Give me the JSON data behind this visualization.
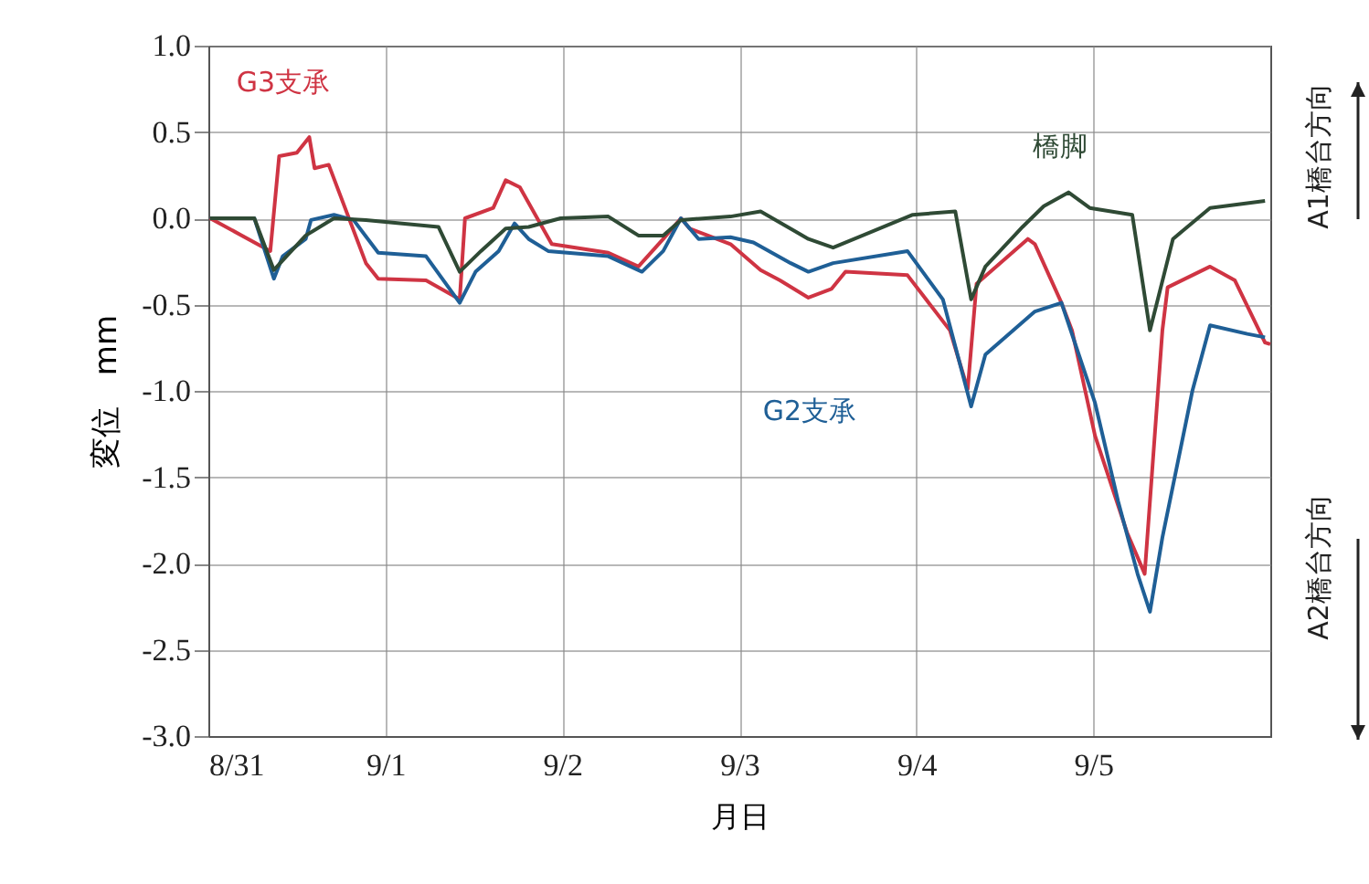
{
  "chart_data": {
    "type": "line",
    "xlabel": "月日",
    "ylabel": "変位　mm",
    "xlim": [
      "--08-31",
      "--09-06"
    ],
    "xticks": [
      {
        "value": "--08-31",
        "label": "8/31"
      },
      {
        "value": "--09-01",
        "label": "9/1"
      },
      {
        "value": "--09-02",
        "label": "9/2"
      },
      {
        "value": "--09-03",
        "label": "9/3"
      },
      {
        "value": "--09-04",
        "label": "9/4"
      },
      {
        "value": "--09-05",
        "label": "9/5"
      }
    ],
    "ylim": [
      -3,
      1
    ],
    "yticks": [
      {
        "value": 1,
        "label": "1.0"
      },
      {
        "value": 0.5,
        "label": "0.5"
      },
      {
        "value": 0,
        "label": "0.0"
      },
      {
        "value": -0.5,
        "label": "-0.5"
      },
      {
        "value": -1,
        "label": "-1.0"
      },
      {
        "value": -1.5,
        "label": "-1.5"
      },
      {
        "value": -2,
        "label": "-2.0"
      },
      {
        "value": -2.5,
        "label": "-2.5"
      },
      {
        "value": -3,
        "label": "-3.0"
      }
    ],
    "grid": true,
    "line_style": "solid",
    "series": [
      {
        "name": "G3支承",
        "color": "#cf3443",
        "x": [
          "--08-31T00:14",
          "--08-31T08:24",
          "--08-31T09:36",
          "--08-31T12:00",
          "--08-31T13:41",
          "--08-31T14:24",
          "--08-31T16:19",
          "--08-31T21:22",
          "--08-31T23:02",
          "--09-01T05:31",
          "--09-01T10:05",
          "--09-01T10:48",
          "--09-01T14:38",
          "--09-01T16:19",
          "--09-01T18:14",
          "--09-01T22:34",
          "--09-02T06:14",
          "--09-02T10:19",
          "--09-02T13:41",
          "--09-02T16:05",
          "--09-02T17:17",
          "--09-02T22:48",
          "--09-03T02:53",
          "--09-03T05:31",
          "--09-03T09:22",
          "--09-03T12:29",
          "--09-03T14:24",
          "--09-03T22:48",
          "--09-04T04:34",
          "--09-04T06:58",
          "--09-04T08:10",
          "--09-04T15:07",
          "--09-04T16:05",
          "--09-04T19:41",
          "--09-04T21:07",
          "--09-05T00:14",
          "--09-05T04:34",
          "--09-05T06:58",
          "--09-05T09:22",
          "--09-05T10:05",
          "--09-05T15:50",
          "--09-05T19:12",
          "--09-05T23:17",
          "--09-06T00:00"
        ],
        "values": [
          0,
          -0.19,
          0.36,
          0.38,
          0.47,
          0.29,
          0.31,
          -0.26,
          -0.35,
          -0.36,
          -0.47,
          0,
          0.06,
          0.22,
          0.18,
          -0.15,
          -0.2,
          -0.28,
          -0.12,
          0,
          -0.06,
          -0.15,
          -0.3,
          -0.36,
          -0.46,
          -0.41,
          -0.31,
          -0.33,
          -0.65,
          -0.99,
          -0.38,
          -0.12,
          -0.15,
          -0.49,
          -0.65,
          -1.26,
          -1.82,
          -2.06,
          -0.65,
          -0.4,
          -0.28,
          -0.36,
          -0.72,
          -0.73
        ]
      },
      {
        "name": "G2支承",
        "color": "#1f5f96",
        "x": [
          "--08-31T00:14",
          "--08-31T06:14",
          "--08-31T08:53",
          "--08-31T10:05",
          "--08-31T13:12",
          "--08-31T13:55",
          "--08-31T17:02",
          "--08-31T19:41",
          "--08-31T23:02",
          "--09-01T05:31",
          "--09-01T10:05",
          "--09-01T12:14",
          "--09-01T15:22",
          "--09-01T17:31",
          "--09-01T19:26",
          "--09-01T22:05",
          "--09-02T06:14",
          "--09-02T10:48",
          "--09-02T13:41",
          "--09-02T16:05",
          "--09-02T18:29",
          "--09-02T22:48",
          "--09-03T01:55",
          "--09-03T06:58",
          "--09-03T09:22",
          "--09-03T12:43",
          "--09-03T22:48",
          "--09-04T03:36",
          "--09-04T07:26",
          "--09-04T09:22",
          "--09-04T16:05",
          "--09-04T19:41",
          "--09-05T00:14",
          "--09-05T03:22",
          "--09-05T06:00",
          "--09-05T07:41",
          "--09-05T09:22",
          "--09-05T13:26",
          "--09-05T15:50",
          "--09-05T20:53",
          "--09-05T23:17"
        ],
        "values": [
          0,
          0,
          -0.35,
          -0.22,
          -0.12,
          -0.01,
          0.02,
          -0.01,
          -0.2,
          -0.22,
          -0.49,
          -0.31,
          -0.19,
          -0.03,
          -0.12,
          -0.19,
          -0.22,
          -0.31,
          -0.19,
          0,
          -0.12,
          -0.11,
          -0.14,
          -0.26,
          -0.31,
          -0.26,
          -0.19,
          -0.47,
          -1.09,
          -0.79,
          -0.54,
          -0.49,
          -1.07,
          -1.64,
          -2.06,
          -2.28,
          -1.85,
          -1,
          -0.62,
          -0.67,
          -0.69
        ]
      },
      {
        "name": "橋脚",
        "color": "#2f4a35",
        "x": [
          "--08-31T00:14",
          "--08-31T06:14",
          "--08-31T08:53",
          "--08-31T13:12",
          "--08-31T17:02",
          "--08-31T21:22",
          "--09-01T07:12",
          "--09-01T10:05",
          "--09-01T12:58",
          "--09-01T16:19",
          "--09-01T19:26",
          "--09-01T23:46",
          "--09-02T06:14",
          "--09-02T10:19",
          "--09-02T13:41",
          "--09-02T16:05",
          "--09-02T22:48",
          "--09-03T02:53",
          "--09-03T09:22",
          "--09-03T12:43",
          "--09-03T23:31",
          "--09-04T05:17",
          "--09-04T07:26",
          "--09-04T09:22",
          "--09-04T14:24",
          "--09-04T17:17",
          "--09-04T20:38",
          "--09-04T23:31",
          "--09-05T05:17",
          "--09-05T07:41",
          "--09-05T10:48",
          "--09-05T15:50",
          "--09-05T23:17"
        ],
        "values": [
          0,
          0,
          -0.3,
          -0.1,
          0,
          -0.01,
          -0.05,
          -0.31,
          -0.19,
          -0.06,
          -0.05,
          0,
          0.01,
          -0.1,
          -0.1,
          -0.01,
          0.01,
          0.04,
          -0.12,
          -0.17,
          0.02,
          0.04,
          -0.47,
          -0.28,
          -0.05,
          0.07,
          0.15,
          0.06,
          0.02,
          -0.65,
          -0.12,
          0.06,
          0.1
        ]
      }
    ],
    "annotations": [
      "A1橋台方向",
      "A2橋台方向"
    ]
  }
}
